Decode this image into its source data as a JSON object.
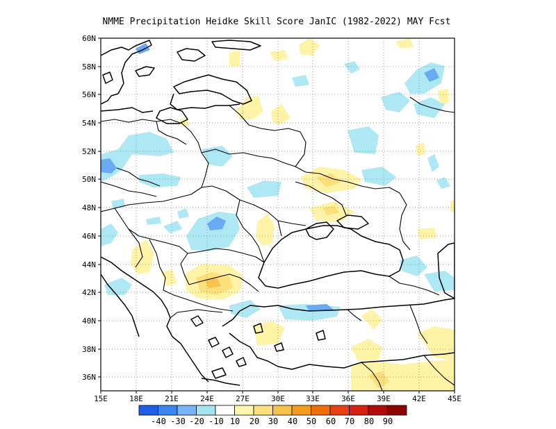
{
  "title": "NMME  Precipitation Heidke Skill Score JanIC (1982-2022) MAY Fcst",
  "lon_labels": [
    "15E",
    "18E",
    "21E",
    "24E",
    "27E",
    "30E",
    "33E",
    "36E",
    "39E",
    "42E",
    "45E"
  ],
  "lat_labels": [
    "60N",
    "58N",
    "56N",
    "54N",
    "52N",
    "50N",
    "48N",
    "46N",
    "44N",
    "42N",
    "40N",
    "38N",
    "36N"
  ],
  "colorbar": {
    "labels": [
      "-40",
      "-30",
      "-20",
      "-10",
      "10",
      "20",
      "30",
      "40",
      "50",
      "60",
      "70",
      "80",
      "90"
    ],
    "colors": [
      "#1e5ee8",
      "#3a86f0",
      "#78b4f5",
      "#a6e4f2",
      "#ffffff",
      "#fff6b0",
      "#fbe07c",
      "#f8c24c",
      "#f49c1c",
      "#f06e08",
      "#e84010",
      "#d82012",
      "#b00a0a",
      "#8c0303"
    ]
  },
  "skill_fields": [
    {
      "name": "light-blue",
      "color": "#aee8f4"
    },
    {
      "name": "medium-blue",
      "color": "#6aaaf3"
    },
    {
      "name": "light-yellow",
      "color": "#fff3a8"
    },
    {
      "name": "yellow",
      "color": "#fbe07c"
    },
    {
      "name": "orange",
      "color": "#f8c24c"
    }
  ]
}
